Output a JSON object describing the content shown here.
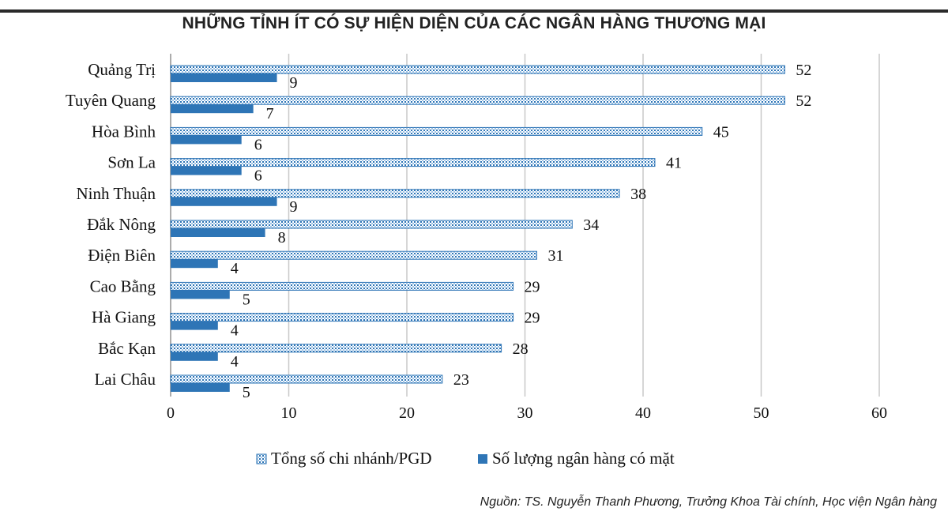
{
  "chart_data": {
    "type": "bar",
    "orientation": "horizontal",
    "title": "NHỮNG TỈNH ÍT CÓ SỰ HIỆN DIỆN CỦA CÁC NGÂN HÀNG THƯƠNG MẠI",
    "categories": [
      "Quảng Trị",
      "Tuyên Quang",
      "Hòa Bình",
      "Sơn La",
      "Ninh Thuận",
      "Đắk Nông",
      "Điện Biên",
      "Cao Bằng",
      "Hà Giang",
      "Bắc Kạn",
      "Lai Châu"
    ],
    "series": [
      {
        "name": "Tổng số chi nhánh/PGD",
        "values": [
          52,
          52,
          45,
          41,
          38,
          34,
          31,
          29,
          29,
          28,
          23
        ],
        "color": "#2e75b6",
        "pattern": "dotted"
      },
      {
        "name": "Số lượng ngân hàng có mặt",
        "values": [
          9,
          7,
          6,
          6,
          9,
          8,
          4,
          5,
          4,
          4,
          5
        ],
        "color": "#2e75b6",
        "pattern": "solid"
      }
    ],
    "xlim": [
      0,
      60
    ],
    "xticks": [
      0,
      10,
      20,
      30,
      40,
      50,
      60
    ],
    "grid": true,
    "legend_position": "bottom"
  },
  "source": "Nguồn: TS. Nguyễn Thanh Phương, Trưởng Khoa Tài chính, Học viện Ngân hàng"
}
